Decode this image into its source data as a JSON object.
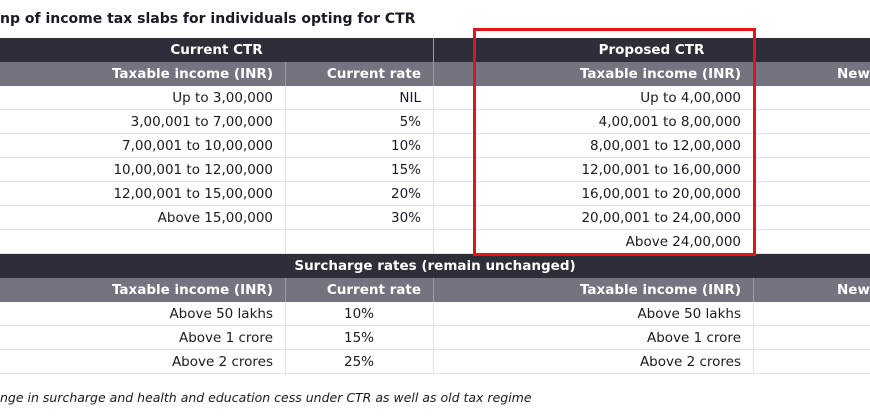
{
  "title": "np of income tax slabs for individuals opting for CTR",
  "header": {
    "current_group": "Current CTR",
    "proposed_group": "Proposed CTR"
  },
  "subheader": {
    "col1": "Taxable income (INR)",
    "col2": "Current rate",
    "col3": "Taxable income (INR)",
    "col4": "New"
  },
  "slab_rows": [
    {
      "current_income": "Up to 3,00,000",
      "current_rate": "NIL",
      "proposed_income": "Up to 4,00,000"
    },
    {
      "current_income": "3,00,001 to 7,00,000",
      "current_rate": "5%",
      "proposed_income": "4,00,001 to 8,00,000"
    },
    {
      "current_income": "7,00,001 to 10,00,000",
      "current_rate": "10%",
      "proposed_income": "8,00,001 to 12,00,000"
    },
    {
      "current_income": "10,00,001 to 12,00,000",
      "current_rate": "15%",
      "proposed_income": "12,00,001 to 16,00,000"
    },
    {
      "current_income": "12,00,001 to 15,00,000",
      "current_rate": "20%",
      "proposed_income": "16,00,001 to 20,00,000"
    },
    {
      "current_income": "Above 15,00,000",
      "current_rate": "30%",
      "proposed_income": "20,00,001 to 24,00,000"
    },
    {
      "current_income": "",
      "current_rate": "",
      "proposed_income": "Above 24,00,000"
    }
  ],
  "surcharge_header": "Surcharge rates (remain unchanged)",
  "surcharge_subheader": {
    "col1": "Taxable income (INR)",
    "col2": "Current rate",
    "col3": "Taxable income (INR)",
    "col4": "New"
  },
  "surcharge_rows": [
    {
      "current_income": "Above 50 lakhs",
      "current_rate": "10%",
      "proposed_income": "Above 50 lakhs"
    },
    {
      "current_income": "Above 1 crore",
      "current_rate": "15%",
      "proposed_income": "Above 1 crore"
    },
    {
      "current_income": "Above 2 crores",
      "current_rate": "25%",
      "proposed_income": "Above 2 crores"
    }
  ],
  "footnote": "nge in surcharge and health and education cess under CTR as well as old tax regime",
  "colors": {
    "dark_header": "#2e2e38",
    "sub_header": "#747480",
    "highlight_border": "#e3121b"
  }
}
